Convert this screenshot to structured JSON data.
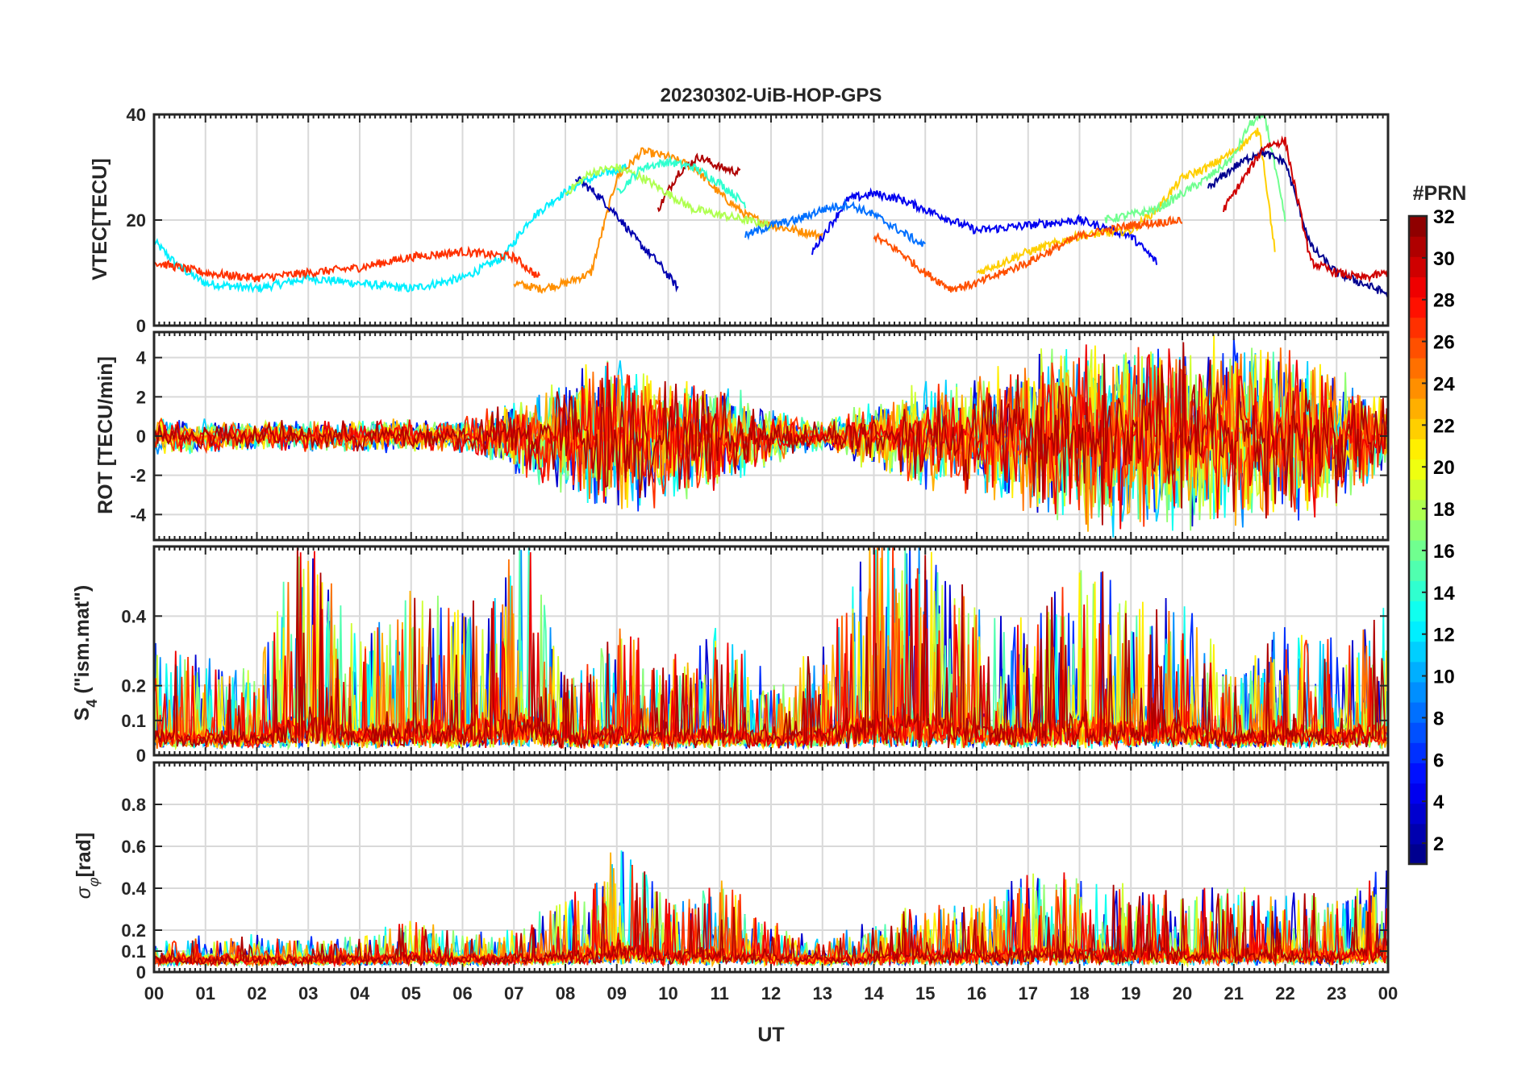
{
  "chart_data": [
    {
      "type": "line",
      "title": "20230302-UiB-HOP-GPS",
      "ylabel": "VTEC[TECU]",
      "xlim": [
        0,
        24
      ],
      "ylim": [
        0,
        40
      ],
      "yticks": [
        0,
        20,
        40
      ],
      "ytick_labels": [
        "0",
        "20",
        "40"
      ],
      "grid": true,
      "series_color_by": "PRN",
      "series": [
        {
          "prn": 12,
          "x": [
            0.0,
            0.5,
            1.0,
            2.0,
            3.0,
            4.0,
            5.0,
            6.0,
            6.8,
            7.3,
            7.8,
            8.3,
            8.8,
            9.2
          ],
          "y": [
            16,
            11,
            8,
            7,
            9,
            8,
            7,
            9,
            13,
            20,
            24,
            27,
            29,
            30
          ]
        },
        {
          "prn": 24,
          "x": [
            7.0,
            7.5,
            8.0,
            8.5,
            9.0,
            9.5,
            10.0,
            10.5,
            11.0,
            11.5,
            12.0,
            12.5,
            13.0
          ],
          "y": [
            8,
            7,
            8,
            10,
            28,
            33,
            32,
            30,
            25,
            21,
            19,
            18,
            17
          ]
        },
        {
          "prn": 31,
          "x": [
            9.8,
            10.2,
            10.6,
            11.0,
            11.4
          ],
          "y": [
            22,
            29,
            32,
            30,
            29
          ]
        },
        {
          "prn": 2,
          "x": [
            8.2,
            8.6,
            9.0,
            9.4,
            9.8,
            10.2
          ],
          "y": [
            28,
            25,
            21,
            16,
            12,
            7
          ]
        },
        {
          "prn": 18,
          "x": [
            8.0,
            8.5,
            9.0,
            9.5,
            10.0,
            10.5,
            11.0,
            11.5,
            12.0
          ],
          "y": [
            25,
            29,
            30,
            28,
            25,
            22,
            21,
            20,
            19
          ]
        },
        {
          "prn": 14,
          "x": [
            9.0,
            9.5,
            10.0,
            10.5,
            11.0,
            11.5
          ],
          "y": [
            25,
            30,
            31,
            30,
            27,
            23
          ]
        },
        {
          "prn": 27,
          "x": [
            0.0,
            1.0,
            2.0,
            3.0,
            4.0,
            5.0,
            6.0,
            7.0,
            7.5
          ],
          "y": [
            12,
            10,
            9,
            10,
            11,
            13,
            14,
            13,
            9
          ]
        },
        {
          "prn": 4,
          "x": [
            12.8,
            13.5,
            14.0,
            14.5,
            15.0,
            15.5,
            16.0,
            17.0,
            18.0,
            19.0,
            19.5
          ],
          "y": [
            14,
            24,
            25,
            24,
            22,
            20,
            18,
            19,
            20,
            17,
            12
          ]
        },
        {
          "prn": 22,
          "x": [
            16.0,
            17.0,
            18.0,
            19.0,
            19.5,
            20.0,
            20.5,
            21.0,
            21.5,
            21.8
          ],
          "y": [
            10,
            14,
            17,
            18,
            22,
            28,
            30,
            33,
            37,
            14
          ]
        },
        {
          "prn": 16,
          "x": [
            18.5,
            19.5,
            20.5,
            21.0,
            21.3,
            21.6,
            22.0
          ],
          "y": [
            20,
            22,
            28,
            32,
            38,
            40,
            20
          ]
        },
        {
          "prn": 1,
          "x": [
            20.5,
            21.0,
            21.5,
            22.0,
            22.5,
            23.0,
            23.5,
            24.0
          ],
          "y": [
            26,
            30,
            33,
            31,
            15,
            10,
            8,
            6
          ]
        },
        {
          "prn": 30,
          "x": [
            20.8,
            21.2,
            21.6,
            22.0,
            22.5,
            23.0,
            23.5,
            24.0
          ],
          "y": [
            22,
            28,
            34,
            35,
            12,
            10,
            9,
            10
          ]
        },
        {
          "prn": 26,
          "x": [
            14.0,
            14.5,
            15.0,
            15.5,
            16.0,
            17.0,
            18.0,
            19.0,
            20.0
          ],
          "y": [
            17,
            14,
            10,
            7,
            8,
            12,
            17,
            19,
            20
          ]
        },
        {
          "prn": 8,
          "x": [
            11.5,
            12.0,
            12.5,
            13.0,
            13.5,
            14.0,
            14.5,
            15.0
          ],
          "y": [
            17,
            19,
            20,
            22,
            23,
            21,
            18,
            15
          ]
        }
      ]
    },
    {
      "type": "line",
      "ylabel": "ROT [TECU/min]",
      "xlim": [
        0,
        24
      ],
      "ylim": [
        -5.3,
        5.3
      ],
      "yticks": [
        -4,
        -2,
        0,
        2,
        4
      ],
      "ytick_labels": [
        "-4",
        "-2",
        "0",
        "2",
        "4"
      ],
      "grid": true,
      "activity_envelope": {
        "x": [
          0,
          2,
          4,
          6,
          7,
          8,
          9,
          10,
          11,
          12,
          13,
          14,
          15,
          16,
          17,
          18,
          19,
          20,
          21,
          22,
          23,
          24
        ],
        "amplitude": [
          1.0,
          0.8,
          0.9,
          1.0,
          2.0,
          3.5,
          4.5,
          3.5,
          3.0,
          1.5,
          0.8,
          2.0,
          3.0,
          3.0,
          4.5,
          5.3,
          5.3,
          5.3,
          5.3,
          5.3,
          4.0,
          2.0
        ]
      }
    },
    {
      "type": "line",
      "ylabel": "S4 (\"ism.mat\")",
      "ylabel_main": "S",
      "ylabel_sub": "4",
      "ylabel_rest": " (\"ism.mat\")",
      "xlim": [
        0,
        24
      ],
      "ylim": [
        0,
        0.6
      ],
      "yticks": [
        0,
        0.1,
        0.2,
        0.4
      ],
      "ytick_labels": [
        "0",
        "0.1",
        "0.2",
        "0.4"
      ],
      "grid": true,
      "activity_envelope": {
        "x": [
          0,
          1,
          2,
          2.8,
          3.2,
          4,
          5,
          6,
          7.3,
          8,
          9,
          10,
          11,
          12,
          13,
          14,
          15,
          16,
          17,
          18,
          19,
          20,
          21,
          22,
          23,
          24
        ],
        "amplitude": [
          0.3,
          0.25,
          0.2,
          0.6,
          0.55,
          0.3,
          0.45,
          0.4,
          0.6,
          0.2,
          0.35,
          0.25,
          0.35,
          0.2,
          0.3,
          0.6,
          0.6,
          0.4,
          0.35,
          0.6,
          0.4,
          0.45,
          0.2,
          0.35,
          0.3,
          0.4
        ]
      }
    },
    {
      "type": "line",
      "ylabel": "σφ[rad]",
      "ylabel_main": "σ",
      "ylabel_sub": "φ",
      "ylabel_rest": "[rad]",
      "xlabel": "UT",
      "xlim": [
        0,
        24
      ],
      "ylim": [
        0,
        1
      ],
      "yticks": [
        0,
        0.1,
        0.2,
        0.4,
        0.6,
        0.8
      ],
      "ytick_labels": [
        "0",
        "0.1",
        "0.2",
        "0.4",
        "0.6",
        "0.8"
      ],
      "xticks": [
        0,
        1,
        2,
        3,
        4,
        5,
        6,
        7,
        8,
        9,
        10,
        11,
        12,
        13,
        14,
        15,
        16,
        17,
        18,
        19,
        20,
        21,
        22,
        23,
        24
      ],
      "xtick_labels": [
        "00",
        "01",
        "02",
        "03",
        "04",
        "05",
        "06",
        "07",
        "08",
        "09",
        "10",
        "11",
        "12",
        "13",
        "14",
        "15",
        "16",
        "17",
        "18",
        "19",
        "20",
        "21",
        "22",
        "23",
        "00"
      ],
      "grid": true,
      "activity_envelope": {
        "x": [
          0,
          2,
          4,
          5,
          6,
          7,
          8,
          9,
          9.6,
          10,
          11,
          12,
          13,
          14,
          15,
          16,
          17,
          18,
          19,
          20,
          21,
          22,
          23,
          24
        ],
        "amplitude": [
          0.1,
          0.12,
          0.1,
          0.2,
          0.12,
          0.15,
          0.3,
          0.55,
          0.45,
          0.3,
          0.4,
          0.2,
          0.1,
          0.2,
          0.3,
          0.25,
          0.45,
          0.4,
          0.35,
          0.35,
          0.35,
          0.35,
          0.3,
          0.45
        ]
      }
    }
  ],
  "colorbar": {
    "title": "#PRN",
    "range": [
      1,
      32
    ],
    "ticks": [
      2,
      4,
      6,
      8,
      10,
      12,
      14,
      16,
      18,
      20,
      22,
      24,
      26,
      28,
      30,
      32
    ],
    "tick_labels": [
      "2",
      "4",
      "6",
      "8",
      "10",
      "12",
      "14",
      "16",
      "18",
      "20",
      "22",
      "24",
      "26",
      "28",
      "30",
      "32"
    ],
    "colormap": "jet",
    "levels": 32
  }
}
